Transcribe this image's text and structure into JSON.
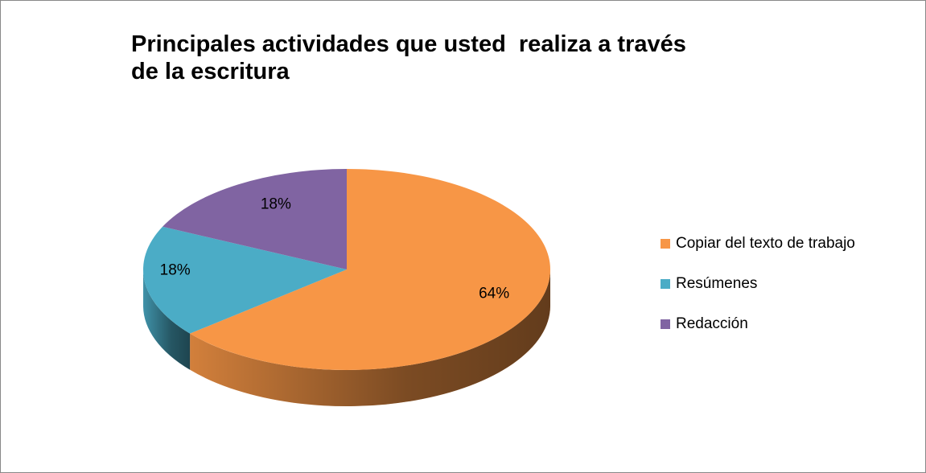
{
  "chart_data": {
    "type": "pie",
    "title": "Principales actividades que usted  realiza a través de la escritura",
    "categories": [
      "Copiar del texto de trabajo",
      "Resúmenes",
      "Redacción"
    ],
    "values": [
      64,
      18,
      18
    ],
    "value_labels": [
      "64%",
      "18%",
      "18%"
    ],
    "colors": [
      "#f79646",
      "#4bacc6",
      "#8064a2"
    ],
    "legend": "right"
  }
}
